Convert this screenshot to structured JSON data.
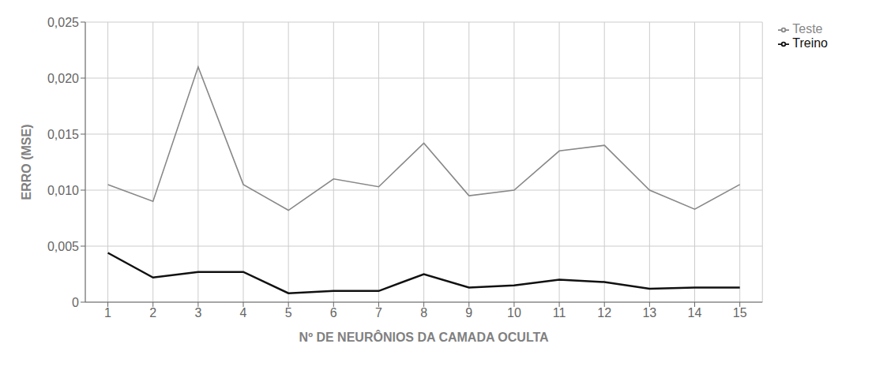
{
  "chart_data": {
    "type": "line",
    "x": [
      1,
      2,
      3,
      4,
      5,
      6,
      7,
      8,
      9,
      10,
      11,
      12,
      13,
      14,
      15
    ],
    "series": [
      {
        "name": "Treino",
        "color": "#111111",
        "values": [
          0.0044,
          0.0022,
          0.0027,
          0.0027,
          0.0008,
          0.001,
          0.001,
          0.0025,
          0.0013,
          0.0015,
          0.002,
          0.0018,
          0.0012,
          0.0013,
          0.0013
        ]
      },
      {
        "name": "Teste",
        "color": "#888888",
        "values": [
          0.0105,
          0.009,
          0.021,
          0.0105,
          0.0082,
          0.011,
          0.0103,
          0.0142,
          0.0095,
          0.01,
          0.0135,
          0.014,
          0.01,
          0.0083,
          0.0105
        ]
      }
    ],
    "xlabel": "Nº DE NEURÔNIOS DA CAMADA OCULTA",
    "ylabel": "ERRO (MSE)",
    "xlim": [
      0.5,
      15.5
    ],
    "xticks": [
      1,
      2,
      3,
      4,
      5,
      6,
      7,
      8,
      9,
      10,
      11,
      12,
      13,
      14,
      15
    ],
    "ylim": [
      0,
      0.025
    ],
    "yticks": [
      0,
      {
        "value": 0.005,
        "label": "0,005"
      },
      {
        "value": 0.01,
        "label": "0,010"
      },
      {
        "value": 0.015,
        "label": "0,015"
      },
      {
        "value": 0.02,
        "label": "0,020"
      },
      {
        "value": 0.025,
        "label": "0,025"
      }
    ],
    "grid": true,
    "legend": "right"
  }
}
